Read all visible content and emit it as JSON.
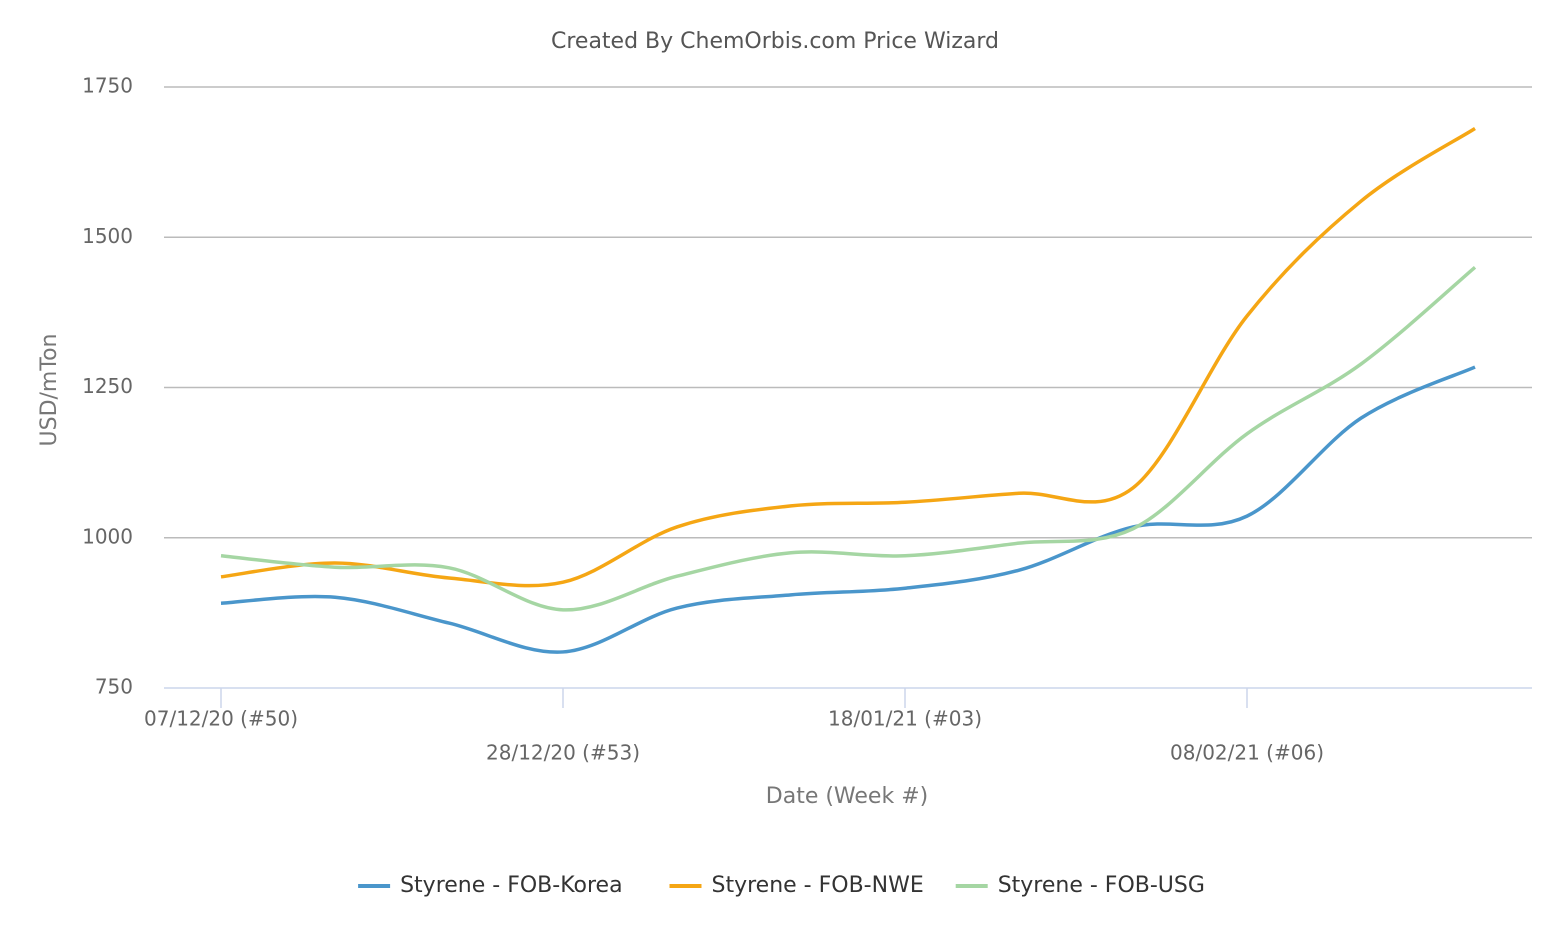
{
  "chart_data": {
    "type": "line",
    "title": "Created By ChemOrbis.com Price Wizard",
    "xlabel": "Date (Week #)",
    "ylabel": "USD/mTon",
    "categories": [
      "07/12/20 (#50)",
      null,
      null,
      "28/12/20 (#53)",
      null,
      null,
      "18/01/21 (#03)",
      null,
      null,
      "08/02/21 (#06)",
      null,
      null
    ],
    "series": [
      {
        "name": "Styrene - FOB-Korea",
        "color": "#4a96cb",
        "values": [
          891,
          901,
          858,
          810,
          883,
          905,
          916,
          946,
          1018,
          1036,
          1199,
          1284
        ]
      },
      {
        "name": "Styrene - FOB-NWE",
        "color": "#f5a614",
        "values": [
          935,
          958,
          933,
          926,
          1018,
          1053,
          1059,
          1074,
          1083,
          1369,
          1560,
          1681
        ]
      },
      {
        "name": "Styrene - FOB-USG",
        "color": "#a5d6a3",
        "values": [
          970,
          951,
          950,
          880,
          936,
          975,
          970,
          991,
          1015,
          1173,
          1289,
          1450
        ]
      }
    ],
    "ylim": [
      750,
      1750
    ],
    "yticks": [
      750,
      1000,
      1250,
      1500,
      1750
    ],
    "grid": true,
    "legend": "bottom"
  }
}
